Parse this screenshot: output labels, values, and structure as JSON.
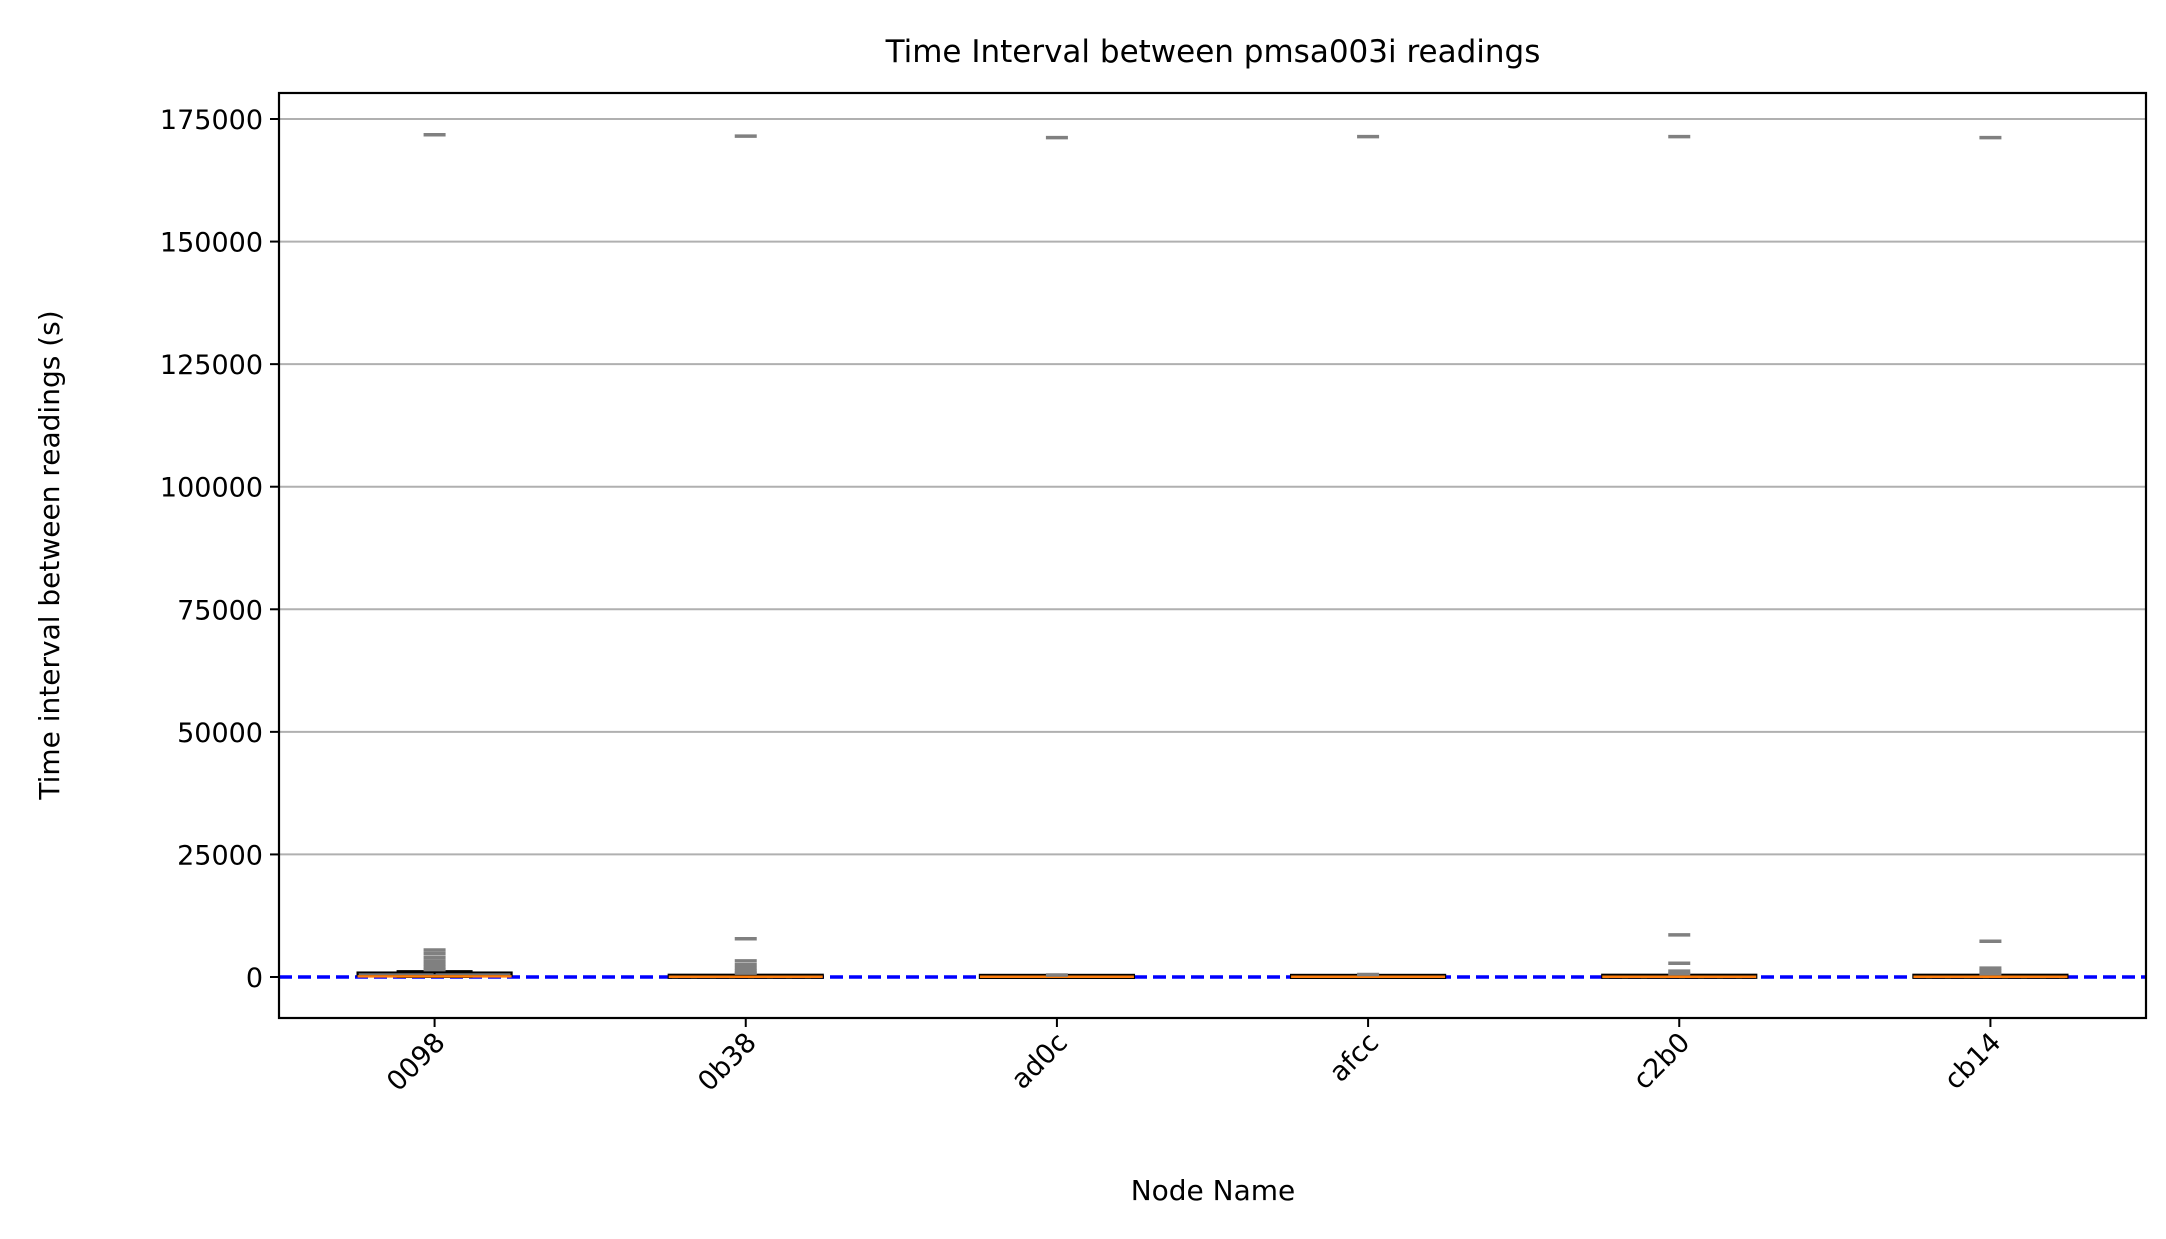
{
  "chart_data": {
    "type": "box",
    "title": "Time Interval between pmsa003i readings",
    "xlabel": "Node Name",
    "ylabel": "Time interval between readings (s)",
    "categories": [
      "0098",
      "0b38",
      "ad0c",
      "afcc",
      "c2b0",
      "cb14"
    ],
    "ylim": [
      -8500,
      181000
    ],
    "yticks": [
      0,
      25000,
      50000,
      75000,
      100000,
      125000,
      150000,
      175000
    ],
    "grid": "y",
    "reference_line": {
      "y": 0,
      "color": "#0000ff",
      "style": "dashed"
    },
    "colors": {
      "box_edge": "#000000",
      "median": "#ff7f0e",
      "outlier": "#808080",
      "grid": "#b0b0b0"
    },
    "boxes": [
      {
        "name": "0098",
        "q1": 40,
        "median": 120,
        "q3": 600,
        "whisker_low": 0,
        "whisker_high": 1200,
        "outliers": [
          171800,
          5500,
          4800,
          4000,
          3300,
          2600,
          2000,
          1500
        ]
      },
      {
        "name": "0b38",
        "q1": 20,
        "median": 60,
        "q3": 150,
        "whisker_low": 0,
        "whisker_high": 300,
        "outliers": [
          171500,
          7800,
          3300,
          2500,
          1800,
          1200,
          800
        ]
      },
      {
        "name": "ad0c",
        "q1": 20,
        "median": 60,
        "q3": 120,
        "whisker_low": 0,
        "whisker_high": 250,
        "outliers": [
          171200,
          400
        ]
      },
      {
        "name": "afcc",
        "q1": 20,
        "median": 60,
        "q3": 120,
        "whisker_low": 0,
        "whisker_high": 250,
        "outliers": [
          171400,
          500
        ]
      },
      {
        "name": "c2b0",
        "q1": 20,
        "median": 60,
        "q3": 150,
        "whisker_low": 0,
        "whisker_high": 300,
        "outliers": [
          171400,
          8600,
          2800,
          1200,
          700
        ]
      },
      {
        "name": "cb14",
        "q1": 20,
        "median": 60,
        "q3": 150,
        "whisker_low": 0,
        "whisker_high": 300,
        "outliers": [
          171200,
          7300,
          1800,
          1300,
          700
        ]
      }
    ]
  }
}
